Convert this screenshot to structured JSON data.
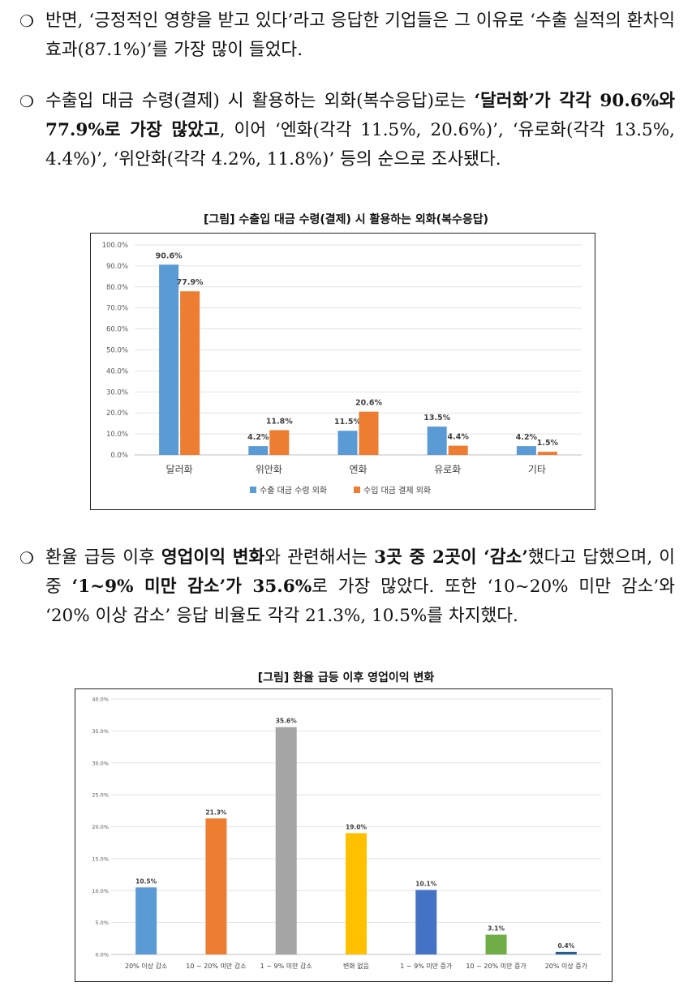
{
  "paragraphs": [
    {
      "bullet": "❍",
      "segments": [
        {
          "t": "반면, ‘긍정적인 영향을 받고 있다’라고 응답한 기업들은 그 이유로 ‘수출 실적의 환차익 효과(87.1%)’를 가장 많이 들었다.",
          "b": false
        }
      ]
    },
    {
      "bullet": "❍",
      "segments": [
        {
          "t": "수출입 대금 수령(결제) 시 활용하는 외화(복수응답)로는 ",
          "b": false
        },
        {
          "t": "‘달러화’가 각각 90.6%와 77.9%로 가장 많았고",
          "b": true
        },
        {
          "t": ", 이어 ‘엔화(각각 11.5%, 20.6%)’, ‘유로화(각각 13.5%, 4.4%)’, ‘위안화(각각 4.2%, 11.8%)’ 등의 순으로 조사됐다.",
          "b": false
        }
      ]
    },
    {
      "bullet": "❍",
      "segments": [
        {
          "t": "환율 급등 이후 ",
          "b": false
        },
        {
          "t": "영업이익 변화",
          "b": true
        },
        {
          "t": "와 관련해서는 ",
          "b": false
        },
        {
          "t": "3곳 중 2곳이 ‘감소’",
          "b": true
        },
        {
          "t": "했다고 답했으며, 이 중 ",
          "b": false
        },
        {
          "t": "‘1~9% 미만 감소’가 35.6%",
          "b": true
        },
        {
          "t": "로 가장 많았다. 또한 ‘10~20% 미만 감소’와 ‘20% 이상 감소’ 응답 비율도 각각 21.3%, 10.5%를 차지했다.",
          "b": false
        }
      ]
    }
  ],
  "captions": {
    "chart1": "[그림] 수출입 대금 수령(결제) 시 활용하는 외화(복수응답)",
    "chart2": "[그림] 환율 급등 이후 영업이익 변화"
  },
  "chart_data": [
    {
      "type": "bar",
      "title": "[그림] 수출입 대금 수령(결제) 시 활용하는 외화(복수응답)",
      "categories": [
        "달러화",
        "위안화",
        "엔화",
        "유로화",
        "기타"
      ],
      "series": [
        {
          "name": "수출 대금 수령 외화",
          "color": "#5B9BD5",
          "values": [
            90.6,
            4.2,
            11.5,
            13.5,
            4.2
          ]
        },
        {
          "name": "수입 대금 결제 외화",
          "color": "#ED7D31",
          "values": [
            77.9,
            11.8,
            20.6,
            4.4,
            1.5
          ]
        }
      ],
      "yticks": [
        "0.0%",
        "10.0%",
        "20.0%",
        "30.0%",
        "40.0%",
        "50.0%",
        "60.0%",
        "70.0%",
        "80.0%",
        "90.0%",
        "100.0%"
      ],
      "ylim": [
        0,
        100
      ],
      "grid": true,
      "legend": "bottom"
    },
    {
      "type": "bar",
      "title": "[그림] 환율 급등 이후 영업이익 변화",
      "categories": [
        "20% 이상 감소",
        "10 ~ 20% 미만 감소",
        "1 ~ 9% 미만 감소",
        "변화 없음",
        "1 ~ 9% 미만 증가",
        "10 ~ 20% 미만 증가",
        "20% 이상 증가"
      ],
      "values": [
        10.5,
        21.3,
        35.6,
        19.0,
        10.1,
        3.1,
        0.4
      ],
      "colors": [
        "#5B9BD5",
        "#ED7D31",
        "#A5A5A5",
        "#FFC000",
        "#4472C4",
        "#70AD47",
        "#255E91"
      ],
      "yticks": [
        "0.0%",
        "5.0%",
        "10.0%",
        "15.0%",
        "20.0%",
        "25.0%",
        "30.0%",
        "35.0%",
        "40.0%"
      ],
      "ylim": [
        0,
        40
      ],
      "grid": true,
      "legend": "none"
    }
  ]
}
